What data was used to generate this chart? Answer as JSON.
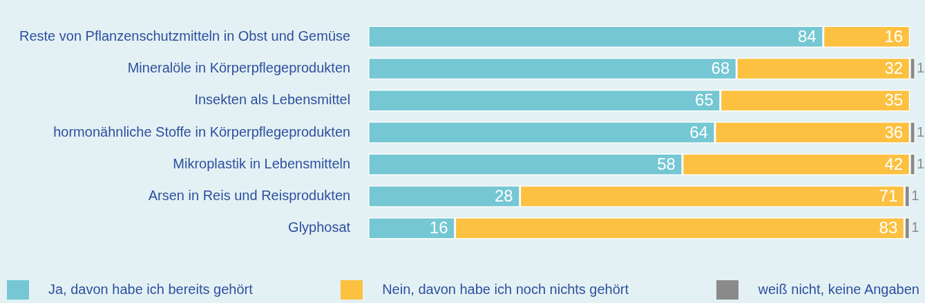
{
  "chart_data": {
    "type": "bar",
    "orientation": "horizontal",
    "stacked": true,
    "categories": [
      "Reste von Pflanzenschutzmitteln in Obst und Gemüse",
      "Mineralöle in Körperpflegeprodukten",
      "Insekten als Lebensmittel",
      "hormonähnliche Stoffe in Körperpflegeprodukten",
      "Mikroplastik in Lebensmitteln",
      "Arsen in Reis und Reisprodukten",
      "Glyphosat"
    ],
    "series": [
      {
        "name": "Ja, davon habe ich bereits gehört",
        "color": "#74c7d3",
        "values": [
          84,
          68,
          65,
          64,
          58,
          28,
          16
        ],
        "value_labels": [
          "84",
          "68",
          "65",
          "64",
          "58",
          "28",
          "16"
        ]
      },
      {
        "name": "Nein, davon habe ich noch nichts gehört",
        "color": "#fcc141",
        "values": [
          16,
          32,
          35,
          36,
          42,
          71,
          83
        ],
        "value_labels": [
          "16",
          "32",
          "35",
          "36",
          "42",
          "71",
          "83"
        ]
      },
      {
        "name": "weiß nicht, keine Angaben",
        "color": "#8a8a8a",
        "values": [
          0,
          1,
          0,
          1,
          1,
          1,
          1
        ],
        "value_labels": [
          null,
          "1",
          null,
          "1",
          "1",
          "1",
          "1"
        ]
      }
    ],
    "xlim": [
      0,
      101
    ],
    "tick_labels": "y",
    "legend": "bottom"
  }
}
